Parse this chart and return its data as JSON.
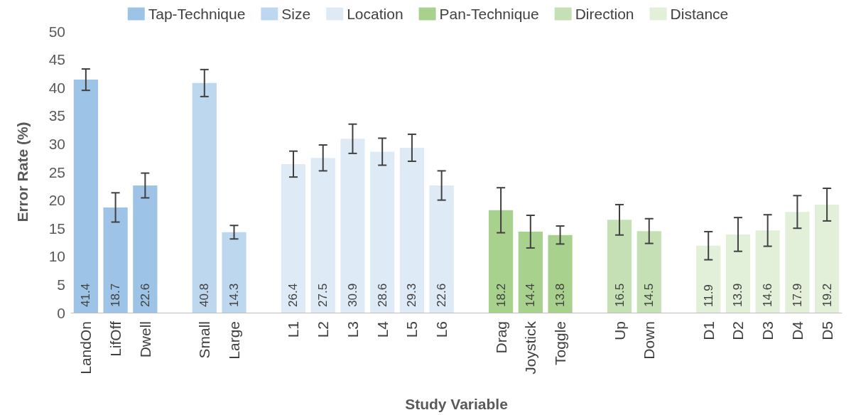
{
  "chart_data": {
    "type": "bar",
    "xlabel": "Study Variable",
    "ylabel": "Error Rate (%)",
    "categories": [
      "LandOn",
      "LifOff",
      "Dwell",
      null,
      "Small",
      "Large",
      null,
      "L1",
      "L2",
      "L3",
      "L4",
      "L5",
      "L6",
      null,
      "Drag",
      "Joystick",
      "Toggle",
      null,
      "Up",
      "Down",
      null,
      "D1",
      "D2",
      "D3",
      "D4",
      "D5"
    ],
    "series": [
      {
        "name": "Tap-Technique",
        "color": "#9dc3e6",
        "values": [
          41.4,
          18.7,
          22.6,
          null,
          null,
          null,
          null,
          null,
          null,
          null,
          null,
          null,
          null,
          null,
          null,
          null,
          null,
          null,
          null,
          null,
          null,
          null,
          null,
          null,
          null,
          null
        ],
        "errors": [
          1.9,
          2.6,
          2.2,
          null,
          null,
          null,
          null,
          null,
          null,
          null,
          null,
          null,
          null,
          null,
          null,
          null,
          null,
          null,
          null,
          null,
          null,
          null,
          null,
          null,
          null,
          null
        ]
      },
      {
        "name": "Size",
        "color": "#bdd7ee",
        "values": [
          null,
          null,
          null,
          null,
          40.8,
          14.3,
          null,
          null,
          null,
          null,
          null,
          null,
          null,
          null,
          null,
          null,
          null,
          null,
          null,
          null,
          null,
          null,
          null,
          null,
          null,
          null
        ],
        "errors": [
          null,
          null,
          null,
          null,
          2.4,
          1.2,
          null,
          null,
          null,
          null,
          null,
          null,
          null,
          null,
          null,
          null,
          null,
          null,
          null,
          null,
          null,
          null,
          null,
          null,
          null,
          null
        ]
      },
      {
        "name": "Location",
        "color": "#deebf7",
        "values": [
          null,
          null,
          null,
          null,
          null,
          null,
          null,
          26.4,
          27.5,
          30.9,
          28.6,
          29.3,
          22.6,
          null,
          null,
          null,
          null,
          null,
          null,
          null,
          null,
          null,
          null,
          null,
          null,
          null
        ],
        "errors": [
          null,
          null,
          null,
          null,
          null,
          null,
          null,
          2.3,
          2.3,
          2.6,
          2.4,
          2.4,
          2.6,
          null,
          null,
          null,
          null,
          null,
          null,
          null,
          null,
          null,
          null,
          null,
          null,
          null
        ]
      },
      {
        "name": "Pan-Technique",
        "color": "#a9d18e",
        "values": [
          null,
          null,
          null,
          null,
          null,
          null,
          null,
          null,
          null,
          null,
          null,
          null,
          null,
          null,
          18.2,
          14.4,
          13.8,
          null,
          null,
          null,
          null,
          null,
          null,
          null,
          null,
          null
        ],
        "errors": [
          null,
          null,
          null,
          null,
          null,
          null,
          null,
          null,
          null,
          null,
          null,
          null,
          null,
          null,
          4.0,
          2.9,
          1.6,
          null,
          null,
          null,
          null,
          null,
          null,
          null,
          null,
          null
        ]
      },
      {
        "name": "Direction",
        "color": "#c5e0b4",
        "values": [
          null,
          null,
          null,
          null,
          null,
          null,
          null,
          null,
          null,
          null,
          null,
          null,
          null,
          null,
          null,
          null,
          null,
          null,
          16.5,
          14.5,
          null,
          null,
          null,
          null,
          null,
          null
        ],
        "errors": [
          null,
          null,
          null,
          null,
          null,
          null,
          null,
          null,
          null,
          null,
          null,
          null,
          null,
          null,
          null,
          null,
          null,
          null,
          2.7,
          2.2,
          null,
          null,
          null,
          null,
          null,
          null
        ]
      },
      {
        "name": "Distance",
        "color": "#e2f0d9",
        "values": [
          null,
          null,
          null,
          null,
          null,
          null,
          null,
          null,
          null,
          null,
          null,
          null,
          null,
          null,
          null,
          null,
          null,
          null,
          null,
          null,
          null,
          11.9,
          13.9,
          14.6,
          17.9,
          19.2
        ],
        "errors": [
          null,
          null,
          null,
          null,
          null,
          null,
          null,
          null,
          null,
          null,
          null,
          null,
          null,
          null,
          null,
          null,
          null,
          null,
          null,
          null,
          null,
          2.5,
          3.0,
          2.8,
          2.9,
          2.9
        ]
      }
    ],
    "ylim": [
      0,
      50
    ],
    "yticks": [
      0,
      5,
      10,
      15,
      20,
      25,
      30,
      35,
      40,
      45,
      50
    ],
    "data_labels": true,
    "grid": false,
    "legend": "top"
  }
}
